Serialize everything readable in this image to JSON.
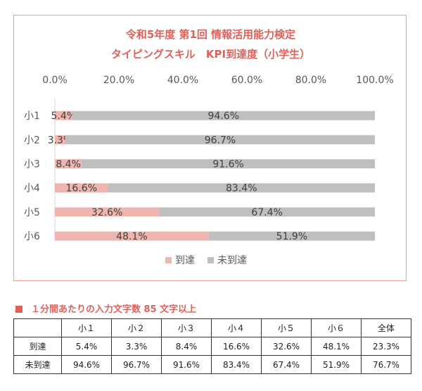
{
  "chart_data": {
    "type": "bar",
    "orientation": "horizontal",
    "stacked": true,
    "title_line1": "令和5年度 第1回 情報活用能力検定",
    "title_line2": "タイピングスキル　KPI到達度（小学生）",
    "categories": [
      "小1",
      "小2",
      "小3",
      "小4",
      "小5",
      "小6"
    ],
    "x_ticks": [
      "0.0%",
      "20.0%",
      "40.0%",
      "60.0%",
      "80.0%",
      "100.0%"
    ],
    "xlim": [
      0,
      100
    ],
    "axis_position": "top",
    "legend_position": "bottom",
    "series": [
      {
        "name": "到達",
        "color": "#efb6b0",
        "values": [
          5.4,
          3.3,
          8.4,
          16.6,
          32.6,
          48.1
        ],
        "labels": [
          "5.4%",
          "3.3%",
          "8.4%",
          "16.6%",
          "32.6%",
          "48.1%"
        ]
      },
      {
        "name": "未到達",
        "color": "#bfbfbf",
        "values": [
          94.6,
          96.7,
          91.6,
          83.4,
          67.4,
          51.9
        ],
        "labels": [
          "94.6%",
          "96.7%",
          "91.6%",
          "83.4%",
          "67.4%",
          "51.9%"
        ]
      }
    ]
  },
  "table_section": {
    "heading": "１分間あたりの入力文字数 85 文字以上",
    "headers": [
      "",
      "小１",
      "小２",
      "小３",
      "小４",
      "小５",
      "小６",
      "全体"
    ],
    "rows": [
      {
        "label": "到達",
        "values": [
          "5.4%",
          "3.3%",
          "8.4%",
          "16.6%",
          "32.6%",
          "48.1%",
          "23.3%"
        ]
      },
      {
        "label": "未到達",
        "values": [
          "94.6%",
          "96.7%",
          "91.6%",
          "83.4%",
          "67.4%",
          "51.9%",
          "76.7%"
        ]
      }
    ]
  }
}
